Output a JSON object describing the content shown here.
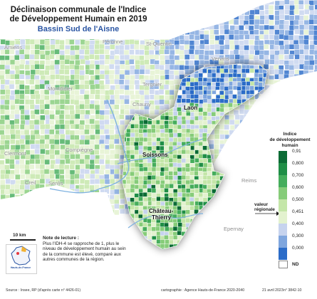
{
  "title": {
    "line1": "Déclinaison communale de l'Indice",
    "line2": "de Développement Humain en 2019",
    "subtitle": "Bassin Sud de l'Aisne"
  },
  "places": {
    "amiens": "Amiens",
    "peronne": "Péronne",
    "saint_quentin": "St-Quentin",
    "vervins": "Vervins",
    "montdidier": "Montdidier",
    "tergnier": "Tergnier",
    "chauny": "Chauny",
    "laon": "Laon",
    "clermont": "Clermont",
    "compiegne": "Compiègne",
    "soissons": "Soissons",
    "creil": "Creil",
    "senlis": "Senlis",
    "reims": "Reims",
    "chateau_thierry_1": "Château-",
    "chateau_thierry_2": "Thierry",
    "epernay": "Epernay"
  },
  "legend": {
    "title_line1": "Indice",
    "title_line2": "de développement",
    "title_line3": "humain",
    "classes": [
      {
        "label": "0,91",
        "color": "#0b6b35"
      },
      {
        "label": "0,800",
        "color": "#1f8e46"
      },
      {
        "label": "0,700",
        "color": "#45ad5c"
      },
      {
        "label": "0,600",
        "color": "#86cc79"
      },
      {
        "label": "0,500",
        "color": "#c4e6a8"
      },
      {
        "label": "0,451",
        "color": "#e3f2cf"
      },
      {
        "label": "0,400",
        "color": "#c6d3ee"
      },
      {
        "label": "0,300",
        "color": "#7fa6de"
      },
      {
        "label": "0,000",
        "color": "#2b6cc8"
      }
    ],
    "nd_label": "ND",
    "regional_value_line1": "valeur",
    "regional_value_line2": "régionale"
  },
  "scale": {
    "label": "10 km"
  },
  "logo": {
    "text": "Hauts-de-France"
  },
  "note": {
    "heading": "Note de lecture :",
    "body": "Plus l'IDH-4 se rapproche de 1, plus le niveau de développement humain au sein de la commune est élevé, comparé aux autres communes de la région."
  },
  "footer": {
    "source": "Source : Insee, RP (d'après carte n° 4426-01)",
    "credit": "cartographie : Agence Hauts-de-France 2020-2040",
    "date": "21 avril 2023",
    "map_number": "n° 3842-10"
  },
  "colors": {
    "background_region": "#d9ead3",
    "river": "#7fb2e0",
    "highlight_green": "#45ad5c",
    "highlight_blue": "#2b6cc8"
  }
}
